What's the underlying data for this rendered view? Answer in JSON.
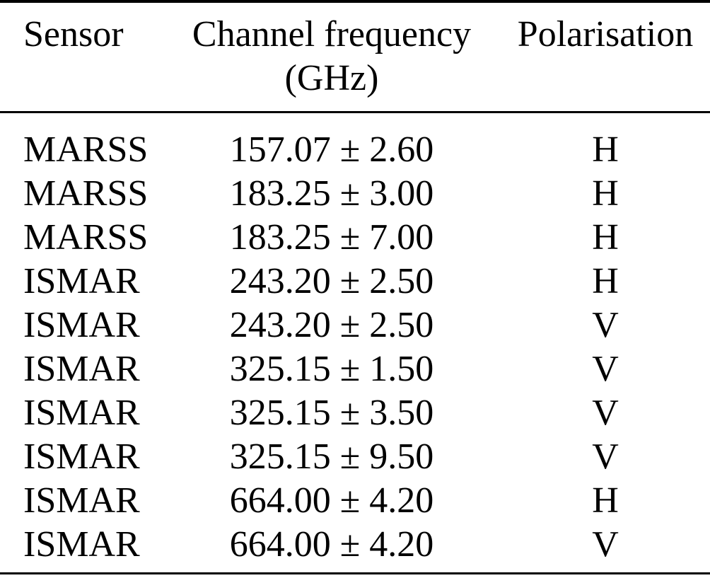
{
  "table": {
    "headers": {
      "sensor": "Sensor",
      "frequency_line1": "Channel frequency",
      "frequency_line2": "(GHz)",
      "polarisation": "Polarisation"
    },
    "frequency_unit": "GHz",
    "rows": [
      {
        "sensor": "MARSS",
        "frequency": "157.07 ± 2.60",
        "polarisation": "H"
      },
      {
        "sensor": "MARSS",
        "frequency": "183.25 ± 3.00",
        "polarisation": "H"
      },
      {
        "sensor": "MARSS",
        "frequency": "183.25 ± 7.00",
        "polarisation": "H"
      },
      {
        "sensor": "ISMAR",
        "frequency": "243.20 ± 2.50",
        "polarisation": "H"
      },
      {
        "sensor": "ISMAR",
        "frequency": "243.20 ± 2.50",
        "polarisation": "V"
      },
      {
        "sensor": "ISMAR",
        "frequency": "325.15 ± 1.50",
        "polarisation": "V"
      },
      {
        "sensor": "ISMAR",
        "frequency": "325.15 ± 3.50",
        "polarisation": "V"
      },
      {
        "sensor": "ISMAR",
        "frequency": "325.15 ± 9.50",
        "polarisation": "V"
      },
      {
        "sensor": "ISMAR",
        "frequency": "664.00 ± 4.20",
        "polarisation": "H"
      },
      {
        "sensor": "ISMAR",
        "frequency": "664.00 ± 4.20",
        "polarisation": "V"
      }
    ],
    "colors": {
      "text": "#000000",
      "background": "#ffffff",
      "rule": "#000000"
    }
  }
}
